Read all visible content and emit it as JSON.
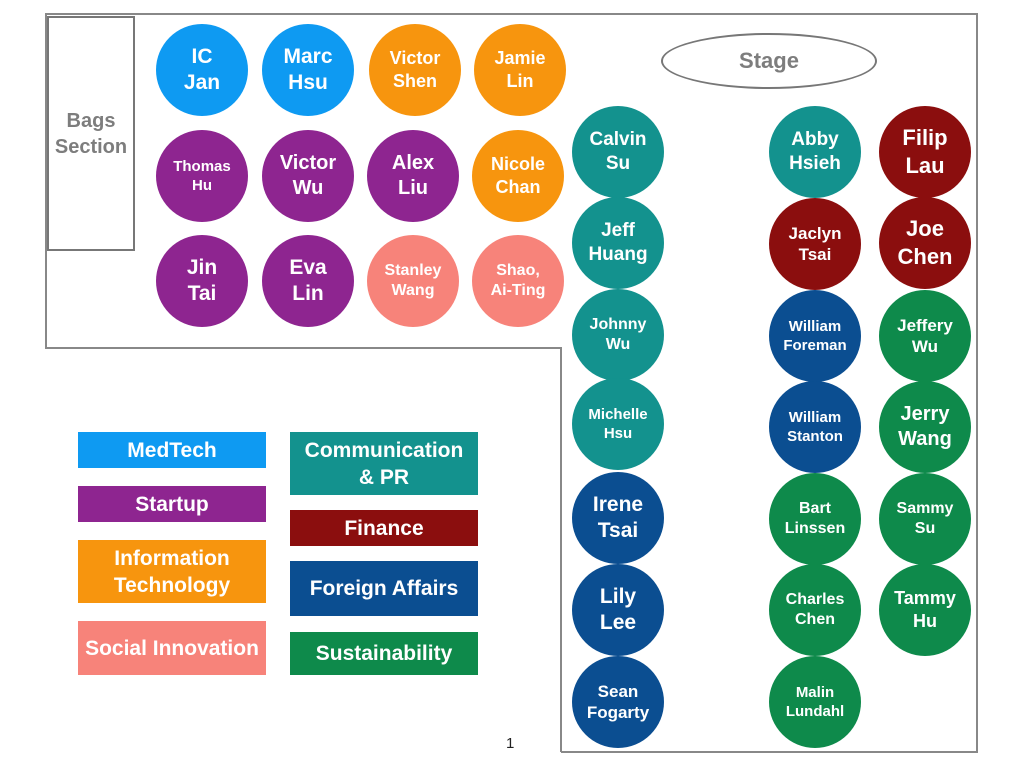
{
  "room": {
    "bags_label": "Bags\nSection",
    "stage_label": "Stage",
    "page_number": "1"
  },
  "colors": {
    "medtech": "#0e9af2",
    "startup": "#8e2590",
    "it": "#f7950e",
    "social": "#f7837a",
    "comm": "#13928e",
    "finance": "#8b0e0e",
    "foreign": "#0b4e91",
    "sustain": "#0e8a4b"
  },
  "legend": [
    {
      "label": "MedTech",
      "group": "medtech"
    },
    {
      "label": "Startup",
      "group": "startup"
    },
    {
      "label": "Information\nTechnology",
      "group": "it"
    },
    {
      "label": "Social Innovation",
      "group": "social"
    },
    {
      "label": "Communication\n& PR",
      "group": "comm"
    },
    {
      "label": "Finance",
      "group": "finance"
    },
    {
      "label": "Foreign Affairs",
      "group": "foreign"
    },
    {
      "label": "Sustainability",
      "group": "sustain"
    }
  ],
  "seats": [
    {
      "name": "IC\nJan",
      "group": "medtech"
    },
    {
      "name": "Marc\nHsu",
      "group": "medtech"
    },
    {
      "name": "Victor\nShen",
      "group": "it"
    },
    {
      "name": "Jamie\nLin",
      "group": "it"
    },
    {
      "name": "Thomas\nHu",
      "group": "startup"
    },
    {
      "name": "Victor\nWu",
      "group": "startup"
    },
    {
      "name": "Alex\nLiu",
      "group": "startup"
    },
    {
      "name": "Nicole\nChan",
      "group": "it"
    },
    {
      "name": "Jin\nTai",
      "group": "startup"
    },
    {
      "name": "Eva\nLin",
      "group": "startup"
    },
    {
      "name": "Stanley\nWang",
      "group": "social"
    },
    {
      "name": "Shao,\nAi-Ting",
      "group": "social"
    },
    {
      "name": "Calvin\nSu",
      "group": "comm"
    },
    {
      "name": "Jeff\nHuang",
      "group": "comm"
    },
    {
      "name": "Johnny\nWu",
      "group": "comm"
    },
    {
      "name": "Michelle\nHsu",
      "group": "comm"
    },
    {
      "name": "Irene\nTsai",
      "group": "foreign"
    },
    {
      "name": "Lily\nLee",
      "group": "foreign"
    },
    {
      "name": "Sean\nFogarty",
      "group": "foreign"
    },
    {
      "name": "Abby\nHsieh",
      "group": "comm"
    },
    {
      "name": "Jaclyn\nTsai",
      "group": "finance"
    },
    {
      "name": "William\nForeman",
      "group": "foreign"
    },
    {
      "name": "William\nStanton",
      "group": "foreign"
    },
    {
      "name": "Bart\nLinssen",
      "group": "sustain"
    },
    {
      "name": "Charles\nChen",
      "group": "sustain"
    },
    {
      "name": "Malin\nLundahl",
      "group": "sustain"
    },
    {
      "name": "Filip\nLau",
      "group": "finance"
    },
    {
      "name": "Joe\nChen",
      "group": "finance"
    },
    {
      "name": "Jeffery\nWu",
      "group": "sustain"
    },
    {
      "name": "Jerry\nWang",
      "group": "sustain"
    },
    {
      "name": "Sammy\nSu",
      "group": "sustain"
    },
    {
      "name": "Tammy\nHu",
      "group": "sustain"
    }
  ]
}
